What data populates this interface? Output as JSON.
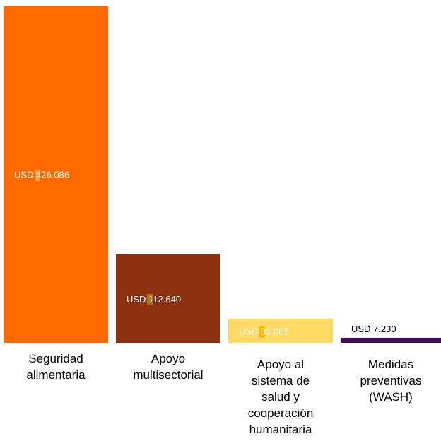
{
  "chart_data": {
    "type": "bar",
    "categories": [
      "Seguridad alimentaria",
      "Apoyo multisectorial",
      "Apoyo al sistema de salud y cooperación humanitaria",
      "Medidas preventivas (WASH)"
    ],
    "values": [
      426086,
      112640,
      31005,
      7230
    ],
    "data_labels": [
      "USD 426.086",
      "USD 112.640",
      "USD 31.005",
      "USD 7.230"
    ],
    "colors": [
      "#ff6a00",
      "#8b3112",
      "#ffd966",
      "#3d0f4f"
    ],
    "label_colors": [
      "#ffffff",
      "#ffffff",
      "#ffffff",
      "#000000"
    ],
    "label_marker_colors": [
      "#ff9a4a",
      "#b0731d",
      "#ffb800",
      "#ffffff"
    ],
    "label_placement": [
      "inside",
      "inside",
      "inside",
      "above"
    ],
    "ylim": [
      0,
      426086
    ],
    "grid": false,
    "legend": false,
    "title": "",
    "xlabel": "",
    "ylabel": ""
  },
  "category_labels": [
    "Seguridad\nalimentaria",
    "Apoyo\nmultisectorial",
    "Apoyo al\nsistema de\nsalud y\ncooperación\nhumanitaria",
    "Medidas\npreventivas\n(WASH)"
  ]
}
